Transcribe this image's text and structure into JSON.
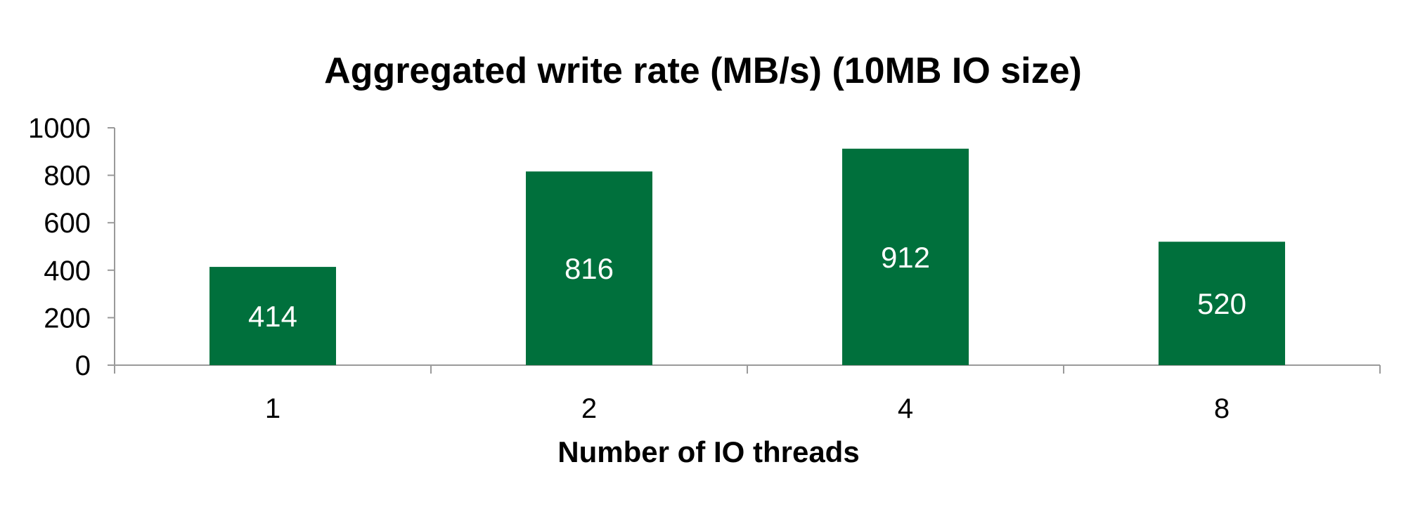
{
  "chart_data": {
    "type": "bar",
    "title": "Aggregated write rate (MB/s) (10MB IO size)",
    "xlabel": "Number of IO threads",
    "ylabel": "",
    "categories": [
      "1",
      "2",
      "4",
      "8"
    ],
    "values": [
      414,
      816,
      912,
      520
    ],
    "data_labels": [
      "414",
      "816",
      "912",
      "520"
    ],
    "yticks": [
      "0",
      "200",
      "400",
      "600",
      "800",
      "1000"
    ],
    "ylim": [
      0,
      1000
    ],
    "grid": false,
    "legend": "none",
    "bar_color": "#00703c"
  }
}
